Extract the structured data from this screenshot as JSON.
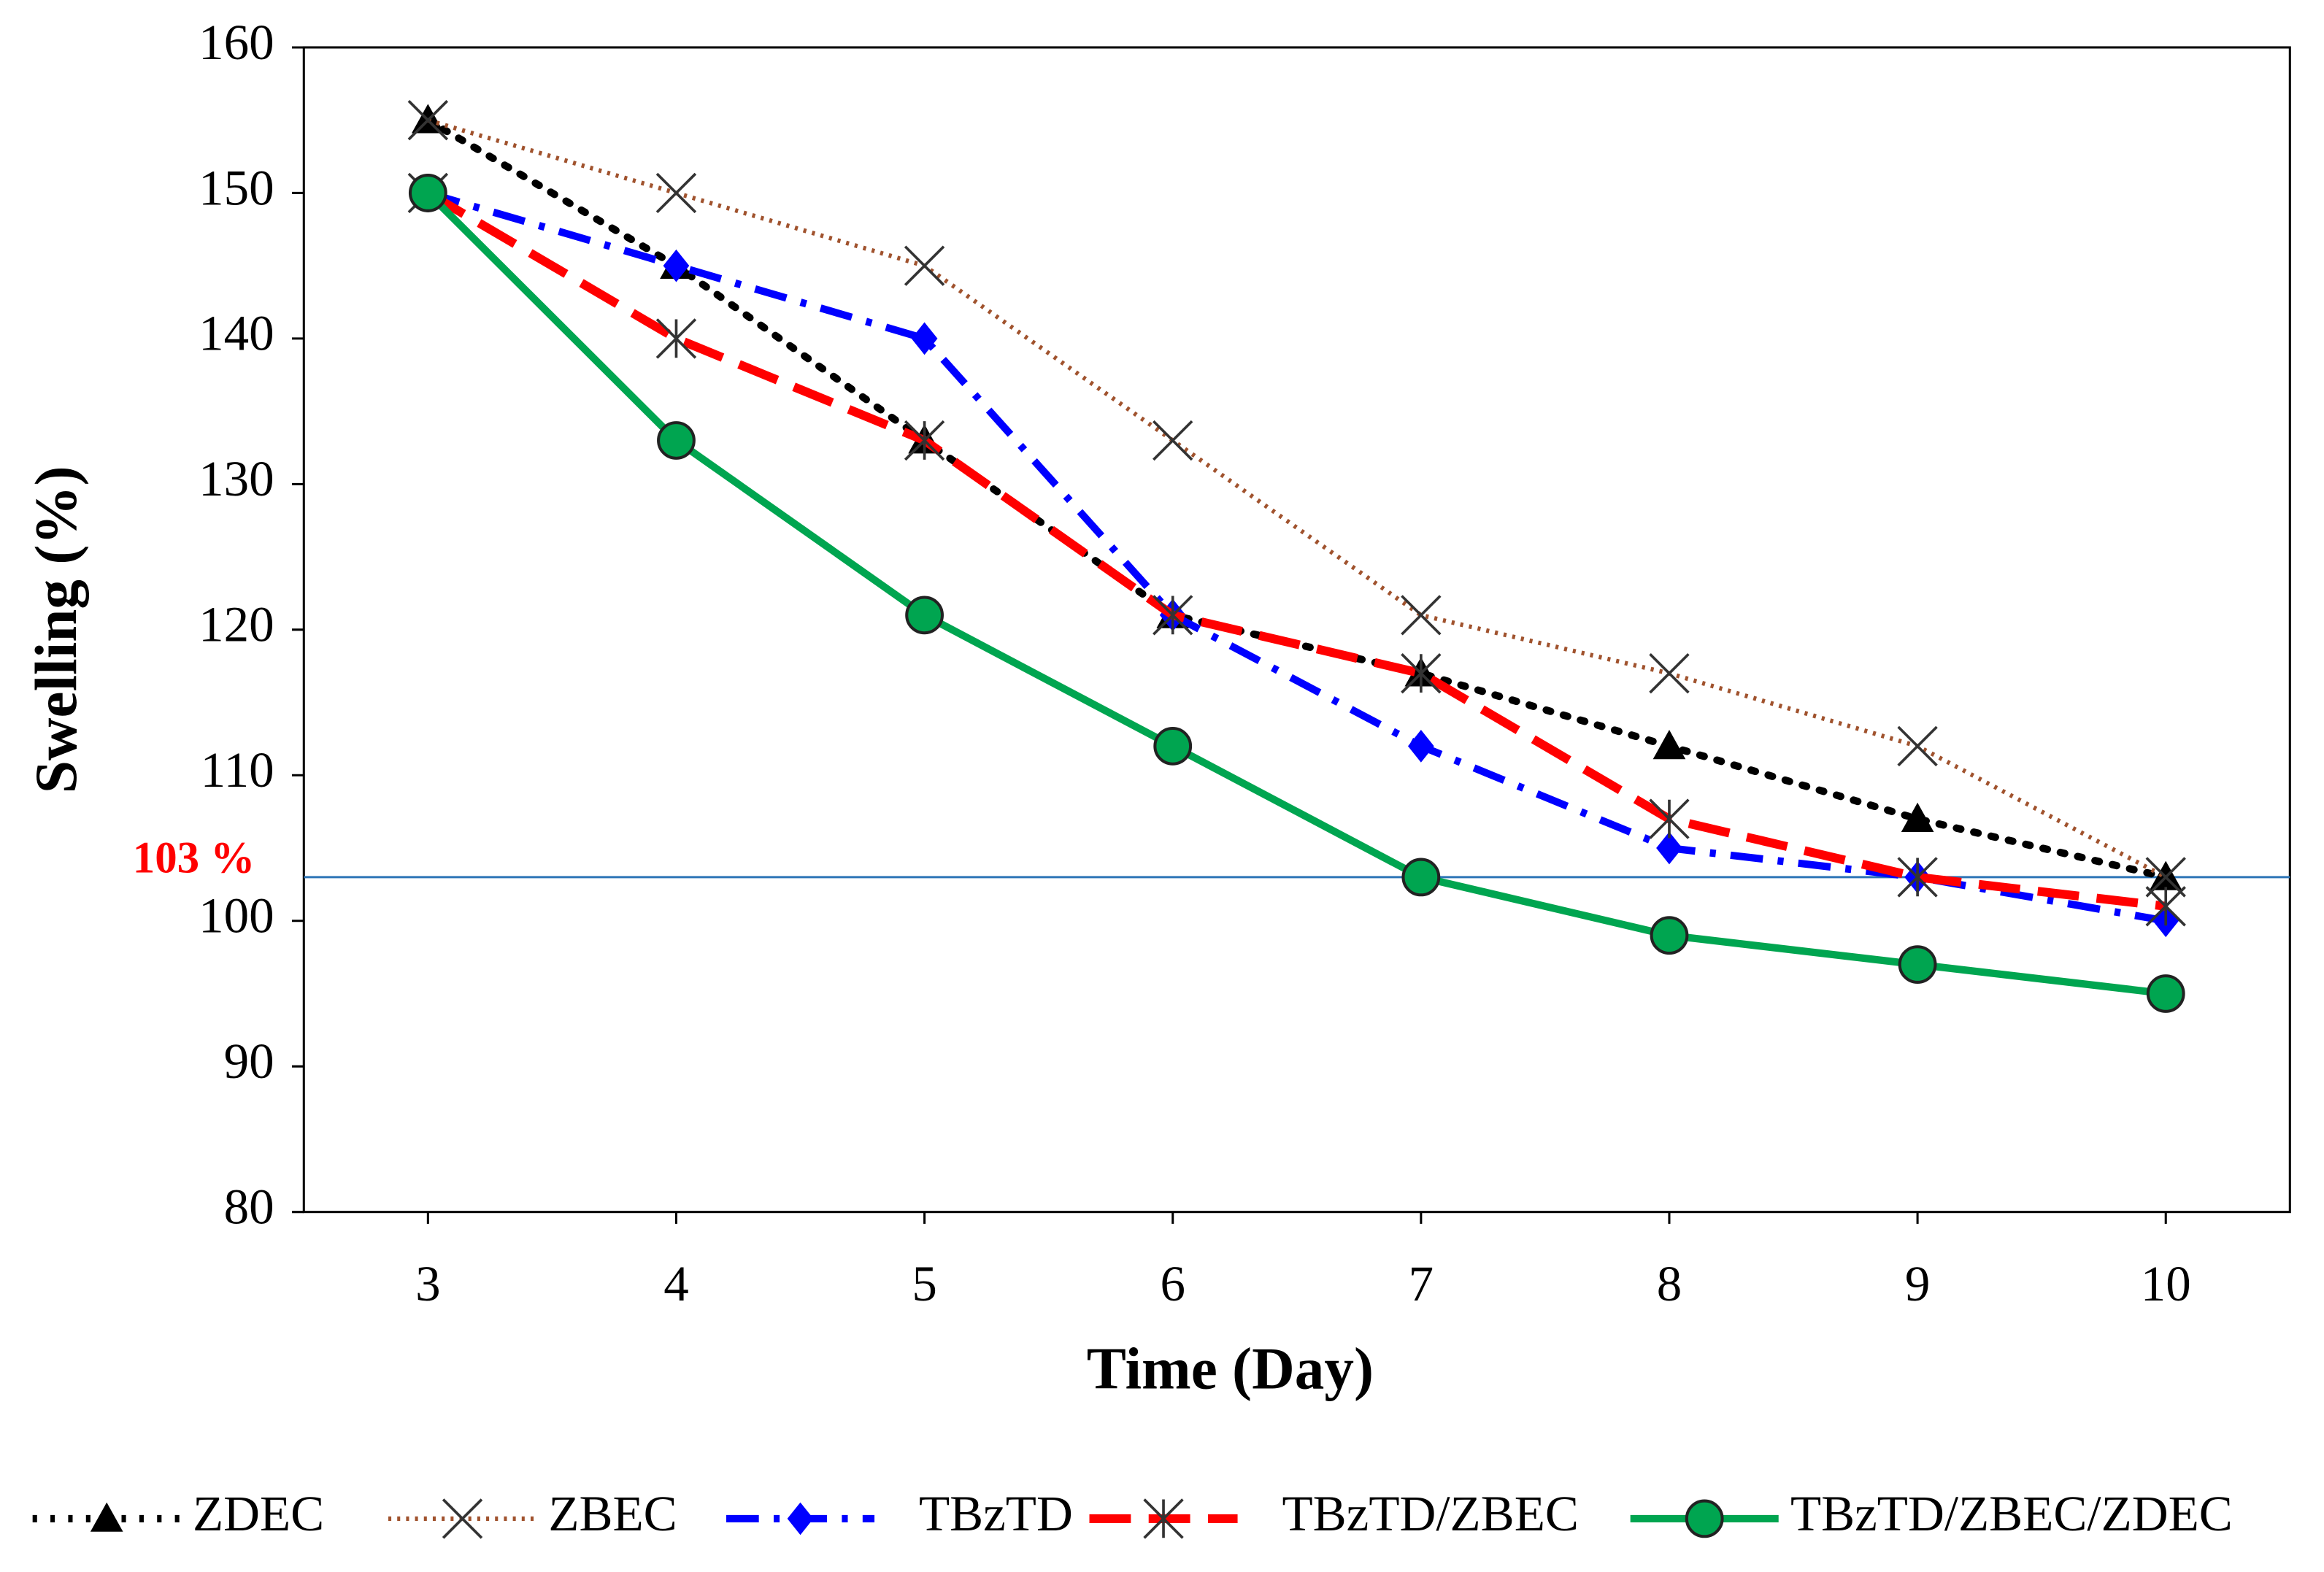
{
  "chart_data": {
    "type": "line",
    "x_label": "Time (Day)",
    "y_label": "Swelling (%)",
    "x": [
      3,
      4,
      5,
      6,
      7,
      8,
      9,
      10
    ],
    "xlim": [
      2.5,
      10.5
    ],
    "xticks": [
      3,
      4,
      5,
      6,
      7,
      8,
      9,
      10
    ],
    "ylim": [
      80,
      160
    ],
    "yticks": [
      80,
      90,
      100,
      110,
      120,
      130,
      140,
      150,
      160
    ],
    "legend": "bottom",
    "reference_line": {
      "value": 103,
      "label": "103 %",
      "color": "#2e75b6",
      "label_color": "#ff0000"
    },
    "series": [
      {
        "name": "ZDEC",
        "color": "#000000",
        "dash": "dot",
        "marker": "triangle",
        "values": [
          155,
          145,
          133,
          121,
          117,
          112,
          107,
          103
        ]
      },
      {
        "name": "ZBEC",
        "color": "#a0522d",
        "dash": "dot-fine",
        "marker": "x",
        "values": [
          155,
          150,
          145,
          133,
          121,
          117,
          112,
          103
        ]
      },
      {
        "name": "TBzTD",
        "color": "#0000ff",
        "dash": "dash-dot",
        "marker": "diamond",
        "values": [
          150,
          145,
          140,
          121,
          112,
          105,
          103,
          100
        ]
      },
      {
        "name": "TBzTD/ZBEC",
        "color": "#ff0000",
        "dash": "dash",
        "marker": "asterisk",
        "values": [
          150,
          140,
          133,
          121,
          117,
          107,
          103,
          101
        ]
      },
      {
        "name": "TBzTD/ZBEC/ZDEC",
        "color": "#00a550",
        "dash": "solid",
        "marker": "circle",
        "values": [
          150,
          133,
          121,
          112,
          103,
          99,
          97,
          95
        ]
      }
    ]
  }
}
